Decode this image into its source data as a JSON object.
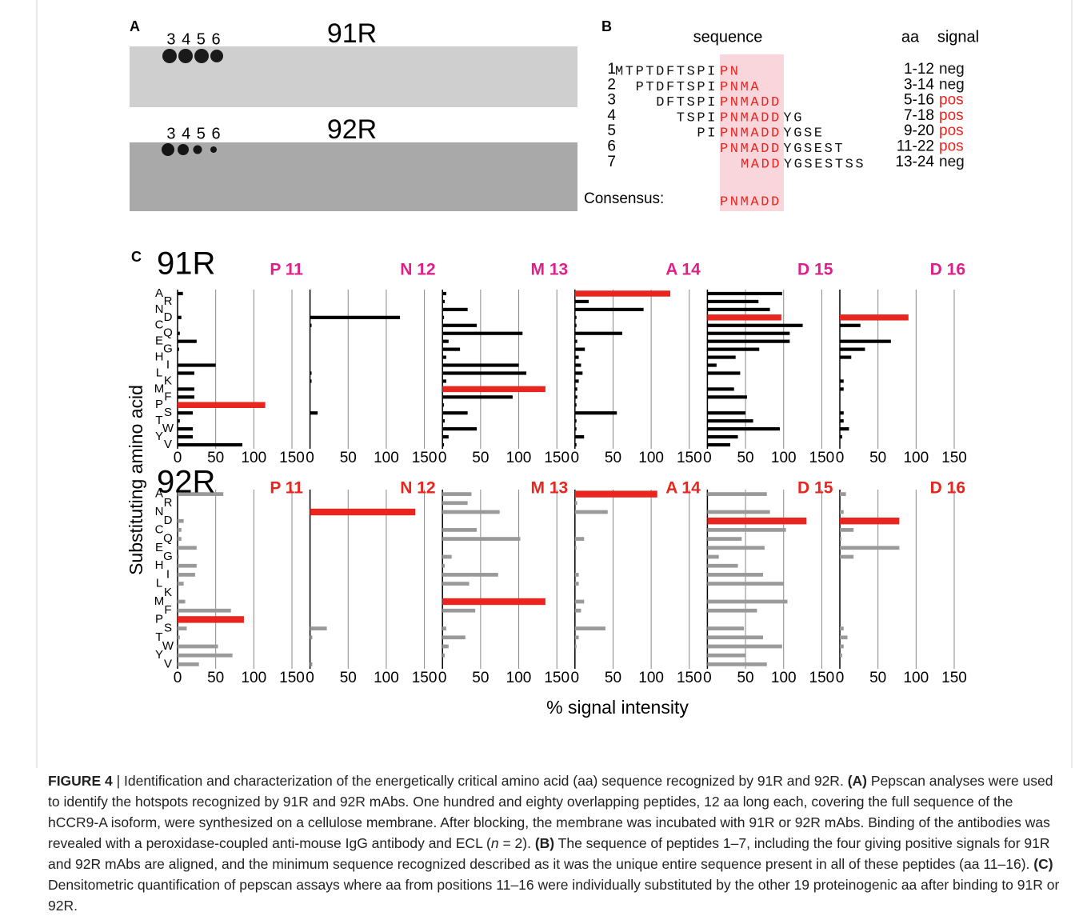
{
  "panel_a": {
    "label": "A",
    "lanes_91": "3 4 5 6",
    "title_91": "91R",
    "lanes_92": "3 4 5 6",
    "title_92": "92R"
  },
  "panel_b": {
    "label": "B",
    "header_sequence": "sequence",
    "header_aa": "aa",
    "header_signal": "signal",
    "rows": [
      {
        "num": "1",
        "before": "MTPTDFTSPI",
        "core": "PN",
        "after": "",
        "aa": "1-12",
        "signal": "neg",
        "signal_color": "#111111"
      },
      {
        "num": "2",
        "before": "PTDFTSPI",
        "core": "PNMA",
        "after": "",
        "aa": "3-14",
        "signal": "neg",
        "signal_color": "#111111"
      },
      {
        "num": "3",
        "before": "DFTSPI",
        "core": "PNMADD",
        "after": "",
        "aa": "5-16",
        "signal": "pos",
        "signal_color": "#e8261f"
      },
      {
        "num": "4",
        "before": "TSPI",
        "core": "PNMADD",
        "after": "YG",
        "aa": "7-18",
        "signal": "pos",
        "signal_color": "#e8261f"
      },
      {
        "num": "5",
        "before": "PI",
        "core": "PNMADD",
        "after": "YGSE",
        "aa": "9-20",
        "signal": "pos",
        "signal_color": "#e8261f"
      },
      {
        "num": "6",
        "before": "",
        "core": "PNMADD",
        "after": "YGSEST",
        "aa": "11-22",
        "signal": "pos",
        "signal_color": "#e8261f"
      },
      {
        "num": "7",
        "before": "",
        "core": "MADD",
        "after": "YGSESTSS",
        "aa": "13-24",
        "signal": "neg",
        "signal_color": "#111111"
      }
    ],
    "consensus_label": "Consensus:",
    "consensus": "PNMADD"
  },
  "panel_c": {
    "label": "C",
    "ylabel": "Substituting amino acid",
    "xlabel": "% signal intensity"
  },
  "chart_data": [
    {
      "type": "bar",
      "orientation": "horizontal",
      "row_title": "91R",
      "title": "P 11",
      "title_color": "#e0208a",
      "categories": [
        "A",
        "R",
        "N",
        "D",
        "C",
        "Q",
        "E",
        "G",
        "H",
        "I",
        "L",
        "K",
        "M",
        "F",
        "P",
        "S",
        "T",
        "W",
        "Y",
        "V"
      ],
      "values": [
        7,
        0,
        0,
        5,
        0,
        3,
        25,
        2,
        0,
        50,
        22,
        0,
        22,
        22,
        115,
        20,
        3,
        20,
        20,
        85
      ],
      "color": "#000000",
      "highlight": "P",
      "highlight_color": "#e8261f",
      "xlim": [
        0,
        150
      ],
      "xticks": [
        0,
        50,
        100,
        150
      ]
    },
    {
      "type": "bar",
      "orientation": "horizontal",
      "title": "N 12",
      "title_color": "#e0208a",
      "values": [
        0,
        0,
        0,
        118,
        2,
        0,
        0,
        0,
        0,
        0,
        2,
        2,
        0,
        0,
        0,
        10,
        0,
        0,
        0,
        0
      ],
      "color": "#000000",
      "highlight": "N",
      "highlight_color": "#e8261f",
      "xlim": [
        0,
        150
      ],
      "xticks": [
        0,
        50,
        100,
        150
      ]
    },
    {
      "type": "bar",
      "orientation": "horizontal",
      "title": "M 13",
      "title_color": "#e0208a",
      "values": [
        5,
        3,
        33,
        2,
        45,
        105,
        8,
        23,
        5,
        100,
        110,
        5,
        135,
        92,
        2,
        33,
        3,
        45,
        8,
        2
      ],
      "color": "#000000",
      "highlight": "M",
      "highlight_color": "#e8261f",
      "xlim": [
        0,
        150
      ],
      "xticks": [
        0,
        50,
        100,
        150
      ]
    },
    {
      "type": "bar",
      "orientation": "horizontal",
      "title": "A 14",
      "title_color": "#e0208a",
      "values": [
        125,
        18,
        90,
        2,
        2,
        62,
        3,
        13,
        5,
        8,
        10,
        5,
        3,
        3,
        2,
        55,
        2,
        2,
        12,
        2
      ],
      "color": "#000000",
      "highlight": "A",
      "highlight_color": "#e8261f",
      "xlim": [
        0,
        150
      ],
      "xticks": [
        0,
        50,
        100,
        150
      ]
    },
    {
      "type": "bar",
      "orientation": "horizontal",
      "title": "D 15",
      "title_color": "#e0208a",
      "values": [
        98,
        67,
        82,
        97,
        125,
        108,
        108,
        68,
        37,
        12,
        43,
        0,
        35,
        52,
        0,
        50,
        60,
        95,
        40,
        30
      ],
      "color": "#000000",
      "highlight": "D",
      "highlight_color": "#e8261f",
      "xlim": [
        0,
        150
      ],
      "xticks": [
        0,
        50,
        100,
        150
      ]
    },
    {
      "type": "bar",
      "orientation": "horizontal",
      "title": "D 16",
      "title_color": "#e0208a",
      "values": [
        0,
        0,
        0,
        90,
        27,
        0,
        67,
        33,
        15,
        0,
        0,
        5,
        5,
        0,
        0,
        5,
        5,
        12,
        3,
        0
      ],
      "color": "#000000",
      "highlight": "D",
      "highlight_color": "#e8261f",
      "xlim": [
        0,
        150
      ],
      "xticks": [
        0,
        50,
        100,
        150
      ]
    },
    {
      "type": "bar",
      "orientation": "horizontal",
      "row_title": "92R",
      "title": "P 11",
      "title_color": "#e8261f",
      "categories": [
        "A",
        "R",
        "N",
        "D",
        "C",
        "Q",
        "E",
        "G",
        "H",
        "I",
        "L",
        "K",
        "M",
        "F",
        "P",
        "S",
        "T",
        "W",
        "Y",
        "V"
      ],
      "values": [
        60,
        0,
        0,
        8,
        5,
        5,
        25,
        2,
        25,
        23,
        8,
        0,
        10,
        70,
        87,
        12,
        3,
        53,
        72,
        28
      ],
      "color": "#999999",
      "highlight": "P",
      "highlight_color": "#e8261f",
      "xlim": [
        0,
        150
      ],
      "xticks": [
        0,
        50,
        100,
        150
      ]
    },
    {
      "type": "bar",
      "orientation": "horizontal",
      "title": "N 12",
      "title_color": "#e8261f",
      "values": [
        0,
        0,
        138,
        0,
        0,
        0,
        0,
        0,
        0,
        0,
        0,
        0,
        0,
        0,
        0,
        22,
        3,
        0,
        0,
        3
      ],
      "color": "#999999",
      "highlight": "N",
      "highlight_color": "#e8261f",
      "xlim": [
        0,
        150
      ],
      "xticks": [
        0,
        50,
        100,
        150
      ]
    },
    {
      "type": "bar",
      "orientation": "horizontal",
      "title": "M 13",
      "title_color": "#e8261f",
      "values": [
        38,
        33,
        75,
        0,
        45,
        102,
        0,
        12,
        3,
        73,
        35,
        0,
        135,
        43,
        0,
        5,
        30,
        8,
        3,
        0
      ],
      "color": "#999999",
      "highlight": "M",
      "highlight_color": "#e8261f",
      "xlim": [
        0,
        150
      ],
      "xticks": [
        0,
        50,
        100,
        150
      ]
    },
    {
      "type": "bar",
      "orientation": "horizontal",
      "title": "A 14",
      "title_color": "#e8261f",
      "values": [
        108,
        3,
        43,
        0,
        0,
        12,
        2,
        0,
        0,
        5,
        5,
        0,
        12,
        8,
        0,
        40,
        5,
        2,
        0,
        0
      ],
      "color": "#999999",
      "highlight": "A",
      "highlight_color": "#e8261f",
      "xlim": [
        0,
        150
      ],
      "xticks": [
        0,
        50,
        100,
        150
      ]
    },
    {
      "type": "bar",
      "orientation": "horizontal",
      "title": "D 15",
      "title_color": "#e8261f",
      "values": [
        78,
        0,
        82,
        130,
        103,
        45,
        75,
        15,
        40,
        73,
        100,
        0,
        105,
        65,
        0,
        48,
        73,
        98,
        50,
        78
      ],
      "color": "#999999",
      "highlight": "D",
      "highlight_color": "#e8261f",
      "xlim": [
        0,
        150
      ],
      "xticks": [
        0,
        50,
        100,
        150
      ]
    },
    {
      "type": "bar",
      "orientation": "horizontal",
      "title": "D 16",
      "title_color": "#e8261f",
      "values": [
        8,
        0,
        5,
        78,
        18,
        2,
        78,
        18,
        0,
        0,
        0,
        0,
        0,
        0,
        0,
        5,
        10,
        5,
        3,
        0
      ],
      "color": "#999999",
      "highlight": "D",
      "highlight_color": "#e8261f",
      "xlim": [
        0,
        150
      ],
      "xticks": [
        0,
        50,
        100,
        150
      ]
    }
  ],
  "caption": [
    "FIGURE 4",
    " | Identification and characterization of the energetically critical amino acid (aa) sequence recognized by 91R and 92R. ",
    "(A)",
    " Pepscan analyses were used to identify the hotspots recognized by 91R and 92R mAbs. One hundred and eighty overlapping peptides, 12 aa long each, covering the full sequence of the hCCR9-A isoform, were synthesized on a cellulose membrane. After blocking, the membrane was incubated with 91R or 92R mAbs. Binding of the antibodies was revealed with a peroxidase-coupled anti-mouse IgG antibody and ECL (",
    "n",
    " = 2). ",
    "(B)",
    " The sequence of peptides 1–7, including the four giving positive signals for 91R and 92R mAbs are aligned, and the minimum sequence recognized described as it was the unique entire sequence present in all of these peptides (aa 11–16). ",
    "(C)",
    " Densitometric quantification of pepscan assays where aa from positions 11–16 were individually substituted by the other 19 proteinogenic aa after binding to 91R or 92R."
  ]
}
